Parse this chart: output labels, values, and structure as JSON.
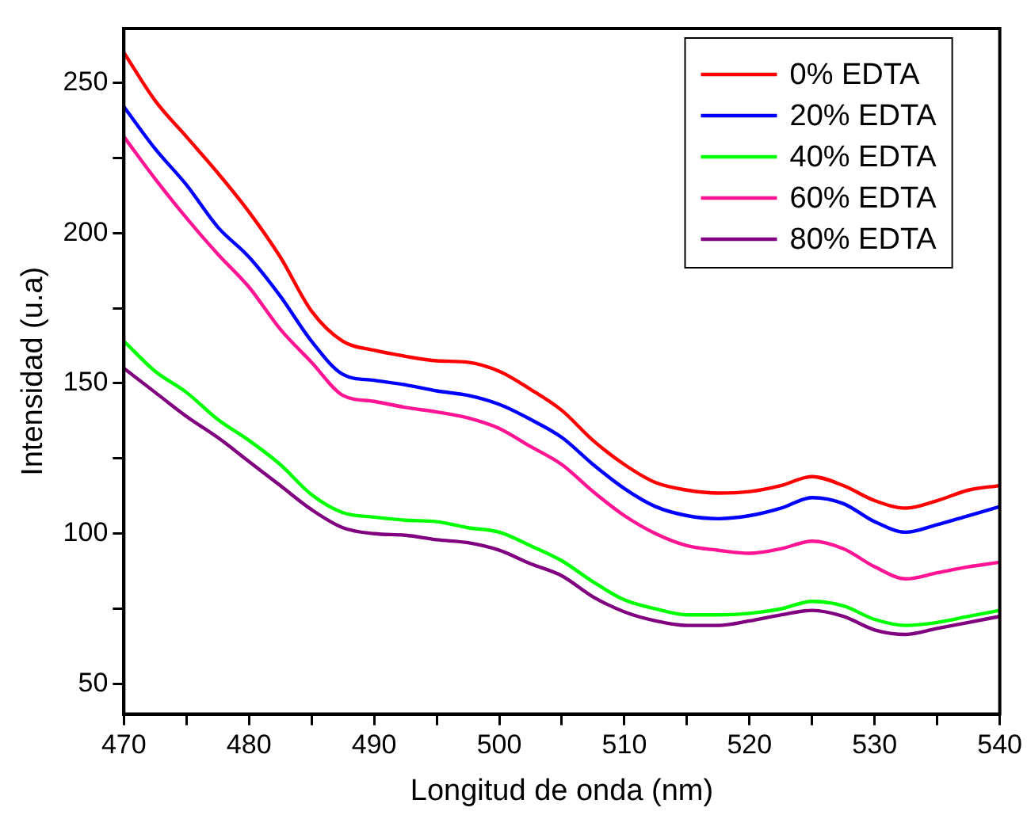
{
  "chart_data": {
    "type": "line",
    "xlabel": "Longitud de onda (nm)",
    "ylabel": "Intensidad (u.a)",
    "x": [
      470,
      472.5,
      475,
      477.5,
      480,
      482.5,
      485,
      487.5,
      490,
      492.5,
      495,
      497.5,
      500,
      502.5,
      505,
      507.5,
      510,
      512.5,
      515,
      517.5,
      520,
      522.5,
      525,
      527.5,
      530,
      532.5,
      535,
      537.5,
      540
    ],
    "series": [
      {
        "name": "0% EDTA",
        "color": "#ff0000",
        "values": [
          260,
          244,
          232,
          220,
          207,
          192,
          174,
          164,
          161,
          159,
          157.5,
          157,
          154,
          148,
          141,
          131,
          123,
          117,
          114.5,
          113.5,
          114,
          116,
          119,
          116,
          111,
          108.5,
          111,
          114.5,
          116
        ]
      },
      {
        "name": "20% EDTA",
        "color": "#0000ff",
        "values": [
          242,
          228,
          216,
          202,
          192,
          179,
          164,
          153,
          151,
          149.5,
          147.5,
          146,
          143,
          138,
          132,
          123,
          115,
          109,
          106,
          105,
          106,
          108.5,
          112,
          110,
          104,
          100.5,
          103,
          106,
          109
        ]
      },
      {
        "name": "40% EDTA",
        "color": "#00ff00",
        "values": [
          164,
          154,
          147,
          138,
          131,
          123,
          113,
          107,
          105.5,
          104.5,
          104,
          102,
          100.5,
          96,
          91,
          84,
          78,
          75,
          73,
          73,
          73.5,
          75,
          77.5,
          76,
          71.5,
          69.5,
          70.5,
          72.5,
          74.5
        ]
      },
      {
        "name": "60% EDTA",
        "color": "#ff1493",
        "values": [
          232,
          218,
          205,
          193,
          182,
          168,
          157,
          146,
          144,
          142,
          140.5,
          138.5,
          135,
          129,
          123,
          114,
          106,
          100,
          96,
          94.5,
          93.5,
          95,
          97.5,
          95,
          89,
          85,
          87,
          89,
          90.5
        ]
      },
      {
        "name": "80% EDTA",
        "color": "#800080",
        "values": [
          155,
          147,
          139,
          132,
          124,
          116,
          108,
          102,
          100,
          99.5,
          98,
          97,
          94.5,
          90,
          86,
          79,
          74,
          71,
          69.5,
          69.5,
          71,
          73,
          74.5,
          72.5,
          68,
          66.5,
          68.5,
          70.5,
          72.5
        ]
      }
    ],
    "xlim": [
      470,
      540
    ],
    "xticks": [
      470,
      {
        "value": 475,
        "label": null
      },
      480,
      {
        "value": 485,
        "label": null
      },
      490,
      {
        "value": 495,
        "label": null
      },
      500,
      {
        "value": 505,
        "label": null
      },
      510,
      {
        "value": 515,
        "label": null
      },
      520,
      {
        "value": 525,
        "label": null
      },
      530,
      {
        "value": 535,
        "label": null
      },
      540
    ],
    "ylim": [
      40,
      268
    ],
    "yticks": [
      50,
      {
        "value": 75,
        "label": null
      },
      100,
      {
        "value": 125,
        "label": null
      },
      150,
      {
        "value": 175,
        "label": null
      },
      200,
      {
        "value": 225,
        "label": null
      },
      250
    ],
    "grid": false,
    "legend": "top right",
    "marker": "none",
    "line_style": "solid"
  }
}
